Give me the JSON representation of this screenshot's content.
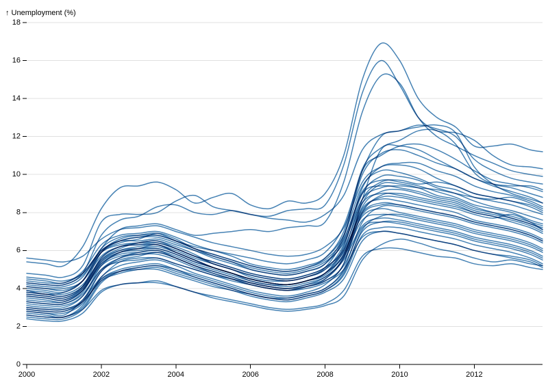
{
  "chart_data": {
    "type": "line",
    "ylabel": "↑ Unemployment (%)",
    "xlabel": "",
    "xlim": [
      2000,
      2013.83
    ],
    "ylim": [
      0,
      18
    ],
    "x_ticks": [
      "2000",
      "2002",
      "2004",
      "2006",
      "2008",
      "2010",
      "2012"
    ],
    "y_ticks": [
      "0",
      "2",
      "4",
      "6",
      "8",
      "10",
      "12",
      "14",
      "16",
      "18"
    ],
    "grid": "horizontal",
    "line_color": "#4682b4",
    "x_sample_years": [
      2000,
      2000.5,
      2001,
      2001.5,
      2002,
      2002.5,
      2003,
      2003.5,
      2004,
      2004.5,
      2005,
      2005.5,
      2006,
      2006.5,
      2007,
      2007.5,
      2008,
      2008.5,
      2009,
      2009.5,
      2010,
      2010.5,
      2011,
      2011.5,
      2012,
      2012.5,
      2013,
      2013.5,
      2013.83
    ],
    "series": [
      {
        "values": [
          2.8,
          2.7,
          2.6,
          3.4,
          4.6,
          5.4,
          5.6,
          5.6,
          5.3,
          5.0,
          4.7,
          4.5,
          4.3,
          4.1,
          4.0,
          4.1,
          4.4,
          5.3,
          8.7,
          11.3,
          11.5,
          11.3,
          10.8,
          10.3,
          9.8,
          9.5,
          9.4,
          9.4,
          9.2
        ]
      },
      {
        "values": [
          5.4,
          5.3,
          5.2,
          6.2,
          8.2,
          9.3,
          9.4,
          9.6,
          9.2,
          8.5,
          8.8,
          9.0,
          8.4,
          8.2,
          8.6,
          8.5,
          9.0,
          11.0,
          15.0,
          16.9,
          16.0,
          14.0,
          13.0,
          12.5,
          11.5,
          11.5,
          11.6,
          11.3,
          11.2
        ]
      },
      {
        "values": [
          4.3,
          4.2,
          4.2,
          4.8,
          6.8,
          7.6,
          7.8,
          8.3,
          8.4,
          8.0,
          7.9,
          8.1,
          7.9,
          7.8,
          8.1,
          8.2,
          8.4,
          10.5,
          14.3,
          16.0,
          14.7,
          13.0,
          12.3,
          12.2,
          11.8,
          11.0,
          10.5,
          10.4,
          10.3
        ]
      },
      {
        "values": [
          3.9,
          3.7,
          3.8,
          4.4,
          6.1,
          7.1,
          7.3,
          7.4,
          7.1,
          6.8,
          6.9,
          7.0,
          7.1,
          7.0,
          7.2,
          7.3,
          7.5,
          9.6,
          13.3,
          15.2,
          14.8,
          13.0,
          12.0,
          11.5,
          11.0,
          10.6,
          10.2,
          10.0,
          9.9
        ]
      },
      {
        "values": [
          4.8,
          4.7,
          4.6,
          5.2,
          7.5,
          7.9,
          7.9,
          8.0,
          8.6,
          8.9,
          8.3,
          8.1,
          7.9,
          7.7,
          7.6,
          7.5,
          7.9,
          8.9,
          11.3,
          12.1,
          12.3,
          12.6,
          12.4,
          12.0,
          10.8,
          10.2,
          9.8,
          9.6,
          9.5
        ]
      },
      {
        "values": [
          4.6,
          4.5,
          4.4,
          4.8,
          6.0,
          6.5,
          6.7,
          6.8,
          6.5,
          6.2,
          6.0,
          5.8,
          5.6,
          5.4,
          5.3,
          5.5,
          5.9,
          7.3,
          10.2,
          12.0,
          12.3,
          12.5,
          12.6,
          12.2,
          10.4,
          9.5,
          9.0,
          8.7,
          8.5
        ]
      },
      {
        "values": [
          4.1,
          4.0,
          4.0,
          4.4,
          5.9,
          6.4,
          6.6,
          6.9,
          6.6,
          6.1,
          5.8,
          5.5,
          5.2,
          5.0,
          4.9,
          5.1,
          5.6,
          7.0,
          10.3,
          11.4,
          11.8,
          12.3,
          12.3,
          11.6,
          10.1,
          9.5,
          9.3,
          9.0,
          8.8
        ]
      },
      {
        "values": [
          3.4,
          3.3,
          3.3,
          3.9,
          5.5,
          6.1,
          6.4,
          6.5,
          6.2,
          5.8,
          5.3,
          5.0,
          4.6,
          4.4,
          4.4,
          4.6,
          5.1,
          6.7,
          10.2,
          11.0,
          11.5,
          11.6,
          11.3,
          10.8,
          10.2,
          9.7,
          9.5,
          9.3,
          9.1
        ]
      },
      {
        "values": [
          3.7,
          3.6,
          3.5,
          4.1,
          5.9,
          6.6,
          6.8,
          6.9,
          6.5,
          6.1,
          5.7,
          5.4,
          5.0,
          4.8,
          4.7,
          4.9,
          5.3,
          6.8,
          10.0,
          11.1,
          11.3,
          11.0,
          10.6,
          10.3,
          9.8,
          9.4,
          9.1,
          8.8,
          8.5
        ]
      },
      {
        "values": [
          3.1,
          3.0,
          3.0,
          3.6,
          5.2,
          5.9,
          6.1,
          6.3,
          5.9,
          5.5,
          5.1,
          4.8,
          4.4,
          4.2,
          4.2,
          4.4,
          4.8,
          6.2,
          9.3,
          10.4,
          10.6,
          10.6,
          10.2,
          9.9,
          9.4,
          9.1,
          8.9,
          8.6,
          8.3
        ]
      },
      {
        "values": [
          5.6,
          5.5,
          5.4,
          5.7,
          6.6,
          7.1,
          7.2,
          7.3,
          7.0,
          6.7,
          6.4,
          6.2,
          6.0,
          5.8,
          5.7,
          5.8,
          6.2,
          7.2,
          9.6,
          10.4,
          10.5,
          10.3,
          9.8,
          9.4,
          9.0,
          8.8,
          8.6,
          8.3,
          8.0
        ]
      },
      {
        "values": [
          4.5,
          4.4,
          4.3,
          4.9,
          6.3,
          6.8,
          6.9,
          7.0,
          6.7,
          6.3,
          6.0,
          5.7,
          5.3,
          5.1,
          5.0,
          5.2,
          5.6,
          6.8,
          9.4,
          10.2,
          10.1,
          9.8,
          9.4,
          9.2,
          8.8,
          8.6,
          8.4,
          8.1,
          7.9
        ]
      },
      {
        "values": [
          3.6,
          3.5,
          3.4,
          4.0,
          5.6,
          6.2,
          6.4,
          6.5,
          6.1,
          5.7,
          5.3,
          5.0,
          4.7,
          4.5,
          4.4,
          4.6,
          5.0,
          6.3,
          9.0,
          9.9,
          9.9,
          9.7,
          9.3,
          9.0,
          8.6,
          8.3,
          8.1,
          7.8,
          7.6
        ]
      },
      {
        "values": [
          4.0,
          3.9,
          3.8,
          4.4,
          5.9,
          6.5,
          6.7,
          6.7,
          6.4,
          6.0,
          5.6,
          5.3,
          5.0,
          4.8,
          4.7,
          4.9,
          5.3,
          6.5,
          9.1,
          9.7,
          9.6,
          9.4,
          9.1,
          8.8,
          8.4,
          8.2,
          8.0,
          7.6,
          7.4
        ]
      },
      {
        "values": [
          2.9,
          2.8,
          2.8,
          3.3,
          4.9,
          5.6,
          5.9,
          6.0,
          5.6,
          5.2,
          4.8,
          4.5,
          4.2,
          4.0,
          3.9,
          4.1,
          4.5,
          5.7,
          8.5,
          9.5,
          9.5,
          9.3,
          8.9,
          8.7,
          8.3,
          8.0,
          7.7,
          7.4,
          7.2
        ]
      },
      {
        "values": [
          3.3,
          3.2,
          3.2,
          3.8,
          5.4,
          6.0,
          6.2,
          6.3,
          5.9,
          5.5,
          5.1,
          4.8,
          4.5,
          4.3,
          4.2,
          4.4,
          4.8,
          6.0,
          8.7,
          9.6,
          9.7,
          9.5,
          9.6,
          9.4,
          9.0,
          8.8,
          8.6,
          8.4,
          8.1
        ]
      },
      {
        "values": [
          4.2,
          4.1,
          4.1,
          4.6,
          6.1,
          6.7,
          6.8,
          6.8,
          6.5,
          6.1,
          5.8,
          5.5,
          5.2,
          5.0,
          4.9,
          5.1,
          5.5,
          6.6,
          9.0,
          9.4,
          9.3,
          9.1,
          8.8,
          8.6,
          8.2,
          8.0,
          7.8,
          7.5,
          7.3
        ]
      },
      {
        "values": [
          3.0,
          2.9,
          2.9,
          3.4,
          4.9,
          5.5,
          5.7,
          5.9,
          5.6,
          5.2,
          4.9,
          4.6,
          4.3,
          4.1,
          4.0,
          4.2,
          4.5,
          5.6,
          8.3,
          9.1,
          9.2,
          9.0,
          8.7,
          8.5,
          8.1,
          7.9,
          7.7,
          7.4,
          7.1
        ]
      },
      {
        "values": [
          3.8,
          3.7,
          3.6,
          4.1,
          5.6,
          6.2,
          6.3,
          6.4,
          6.1,
          5.7,
          5.4,
          5.1,
          4.8,
          4.6,
          4.5,
          4.7,
          5.1,
          6.1,
          8.5,
          9.0,
          8.9,
          8.7,
          8.5,
          8.3,
          8.0,
          7.8,
          7.6,
          7.3,
          7.0
        ]
      },
      {
        "values": [
          2.7,
          2.6,
          2.5,
          3.1,
          4.6,
          5.2,
          5.4,
          5.5,
          5.2,
          4.8,
          4.5,
          4.2,
          3.9,
          3.7,
          3.6,
          3.8,
          4.2,
          5.3,
          8.0,
          8.9,
          9.0,
          8.8,
          8.6,
          8.4,
          8.0,
          7.8,
          7.5,
          7.2,
          6.9
        ]
      },
      {
        "values": [
          4.4,
          4.3,
          4.3,
          4.8,
          6.0,
          6.5,
          6.5,
          6.6,
          6.3,
          6.0,
          5.7,
          5.4,
          5.1,
          4.9,
          4.8,
          5.0,
          5.4,
          6.4,
          8.7,
          9.3,
          9.4,
          9.3,
          9.2,
          9.0,
          8.8,
          8.7,
          8.8,
          8.5,
          8.2
        ]
      },
      {
        "values": [
          3.5,
          3.4,
          3.3,
          3.9,
          5.3,
          5.9,
          6.1,
          6.2,
          5.9,
          5.5,
          5.1,
          4.8,
          4.5,
          4.3,
          4.2,
          4.4,
          4.7,
          5.8,
          8.2,
          8.7,
          8.6,
          8.4,
          8.2,
          8.0,
          7.6,
          7.4,
          7.2,
          6.9,
          6.6
        ]
      },
      {
        "values": [
          2.5,
          2.4,
          2.4,
          2.9,
          4.3,
          4.9,
          5.1,
          5.2,
          4.9,
          4.6,
          4.3,
          4.0,
          3.7,
          3.5,
          3.5,
          3.7,
          4.0,
          5.0,
          7.5,
          8.3,
          8.3,
          8.1,
          7.9,
          7.7,
          7.4,
          7.2,
          7.0,
          6.7,
          6.4
        ]
      },
      {
        "values": [
          3.2,
          3.1,
          3.1,
          3.6,
          5.0,
          5.6,
          5.8,
          5.9,
          5.6,
          5.2,
          4.9,
          4.6,
          4.3,
          4.1,
          4.0,
          4.2,
          4.6,
          5.6,
          7.9,
          8.4,
          8.4,
          8.2,
          8.0,
          7.8,
          7.5,
          7.3,
          7.1,
          6.8,
          6.5
        ]
      },
      {
        "values": [
          4.1,
          4.0,
          3.9,
          4.4,
          5.7,
          6.2,
          6.3,
          6.3,
          6.0,
          5.6,
          5.3,
          5.0,
          4.7,
          4.5,
          4.4,
          4.6,
          5.0,
          5.9,
          7.8,
          8.2,
          8.0,
          7.8,
          7.6,
          7.4,
          7.1,
          6.9,
          6.7,
          6.4,
          6.1
        ]
      },
      {
        "values": [
          2.6,
          2.5,
          2.5,
          3.0,
          4.4,
          4.9,
          5.1,
          5.2,
          5.0,
          4.6,
          4.3,
          4.0,
          3.7,
          3.5,
          3.4,
          3.6,
          3.9,
          4.8,
          7.1,
          7.8,
          7.9,
          7.7,
          7.5,
          7.3,
          7.0,
          6.8,
          6.6,
          6.3,
          6.0
        ]
      },
      {
        "values": [
          3.9,
          3.8,
          3.7,
          4.2,
          5.5,
          6.0,
          6.1,
          6.1,
          5.8,
          5.4,
          5.1,
          4.8,
          4.5,
          4.3,
          4.2,
          4.4,
          4.8,
          5.7,
          7.6,
          7.9,
          7.8,
          7.6,
          7.4,
          7.2,
          6.9,
          6.7,
          6.5,
          6.2,
          5.9
        ]
      },
      {
        "values": [
          2.8,
          2.7,
          2.7,
          3.2,
          4.5,
          5.0,
          5.2,
          5.3,
          5.0,
          4.7,
          4.4,
          4.1,
          3.8,
          3.6,
          3.5,
          3.7,
          4.0,
          4.9,
          7.0,
          7.5,
          7.5,
          7.3,
          7.1,
          6.9,
          6.6,
          6.4,
          6.2,
          5.9,
          5.6
        ]
      },
      {
        "values": [
          3.7,
          3.6,
          3.5,
          4.0,
          5.3,
          5.8,
          5.9,
          6.0,
          5.7,
          5.3,
          5.0,
          4.7,
          4.4,
          4.2,
          4.1,
          4.3,
          4.6,
          5.5,
          7.3,
          7.7,
          7.6,
          7.4,
          7.2,
          7.0,
          6.7,
          6.5,
          6.3,
          6.0,
          5.7
        ]
      },
      {
        "values": [
          2.9,
          2.8,
          2.8,
          3.3,
          4.4,
          4.8,
          5.0,
          5.1,
          4.8,
          4.5,
          4.2,
          3.9,
          3.7,
          3.5,
          3.4,
          3.6,
          3.9,
          4.7,
          6.8,
          7.2,
          7.2,
          7.0,
          6.8,
          6.6,
          6.3,
          6.1,
          5.9,
          5.6,
          5.3
        ]
      },
      {
        "values": [
          3.3,
          3.2,
          3.2,
          3.7,
          5.0,
          5.4,
          5.5,
          5.6,
          5.3,
          5.0,
          4.7,
          4.4,
          4.2,
          4.0,
          3.9,
          4.0,
          4.3,
          5.0,
          6.7,
          7.0,
          6.9,
          6.7,
          6.5,
          6.3,
          6.0,
          5.8,
          5.7,
          5.5,
          5.2
        ]
      },
      {
        "values": [
          2.4,
          2.3,
          2.3,
          2.7,
          3.8,
          4.2,
          4.3,
          4.3,
          4.1,
          3.8,
          3.5,
          3.3,
          3.1,
          2.9,
          2.8,
          2.9,
          3.1,
          3.6,
          5.5,
          6.3,
          6.6,
          6.4,
          6.1,
          5.9,
          5.6,
          5.4,
          5.5,
          5.3,
          5.2
        ]
      },
      {
        "values": [
          2.6,
          2.5,
          2.5,
          2.9,
          3.9,
          4.2,
          4.3,
          4.4,
          4.1,
          3.8,
          3.6,
          3.4,
          3.2,
          3.0,
          2.9,
          3.0,
          3.2,
          3.9,
          5.7,
          6.1,
          6.1,
          5.9,
          5.7,
          5.6,
          5.3,
          5.2,
          5.3,
          5.1,
          5.0
        ]
      },
      {
        "values": [
          3.0,
          2.9,
          2.9,
          3.3,
          4.5,
          4.9,
          5.0,
          5.0,
          4.7,
          4.4,
          4.1,
          3.9,
          3.6,
          3.4,
          3.3,
          3.5,
          3.8,
          4.5,
          6.5,
          7.0,
          6.9,
          6.7,
          6.5,
          6.3,
          6.0,
          5.8,
          5.6,
          5.4,
          5.1
        ]
      },
      {
        "values": [
          3.6,
          3.5,
          3.4,
          3.9,
          5.2,
          5.7,
          5.8,
          5.8,
          5.5,
          5.1,
          4.8,
          4.5,
          4.2,
          4.0,
          3.9,
          4.1,
          4.4,
          5.2,
          7.2,
          7.5,
          7.4,
          7.2,
          7.0,
          6.8,
          6.5,
          6.3,
          6.1,
          5.8,
          5.5
        ]
      },
      {
        "values": [
          4.3,
          4.2,
          4.2,
          4.7,
          5.9,
          6.3,
          6.4,
          6.4,
          6.1,
          5.7,
          5.4,
          5.1,
          4.8,
          4.6,
          4.5,
          4.7,
          5.1,
          6.0,
          8.0,
          8.5,
          8.4,
          8.2,
          8.0,
          7.8,
          7.5,
          7.3,
          7.1,
          6.8,
          6.5
        ]
      },
      {
        "values": [
          3.8,
          3.7,
          3.6,
          4.1,
          5.4,
          5.9,
          6.0,
          6.1,
          5.8,
          5.4,
          5.1,
          4.8,
          4.5,
          4.3,
          4.2,
          4.4,
          4.8,
          5.8,
          8.1,
          8.8,
          8.8,
          8.6,
          8.4,
          8.2,
          7.9,
          7.7,
          7.9,
          7.5,
          7.1
        ]
      }
    ]
  }
}
